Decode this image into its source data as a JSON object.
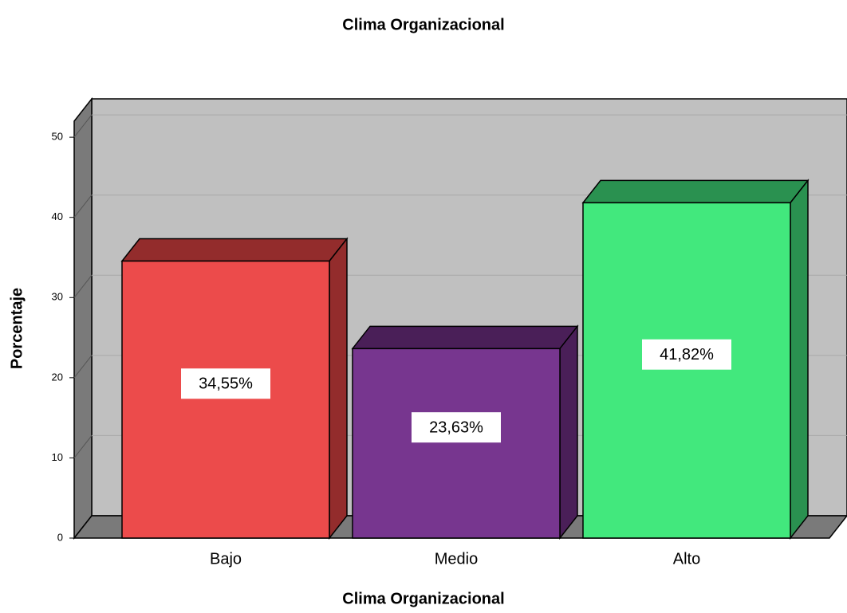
{
  "chart_data": {
    "type": "bar3d",
    "title": "Clima Organizacional",
    "x_label": "Clima Organizacional",
    "y_label": "Porcentaje",
    "categories": [
      "Bajo",
      "Medio",
      "Alto"
    ],
    "values": [
      34.55,
      23.63,
      41.82
    ],
    "value_labels": [
      "34,55%",
      "23,63%",
      "41,82%"
    ],
    "colors": [
      "#ec4b4b",
      "#77368f",
      "#42e87d"
    ],
    "side_colors": [
      "#932c2c",
      "#4a1f58",
      "#2a9150"
    ],
    "ylim": [
      0,
      52
    ],
    "yticks": [
      0,
      10,
      20,
      30,
      40,
      50
    ],
    "grid": true
  }
}
